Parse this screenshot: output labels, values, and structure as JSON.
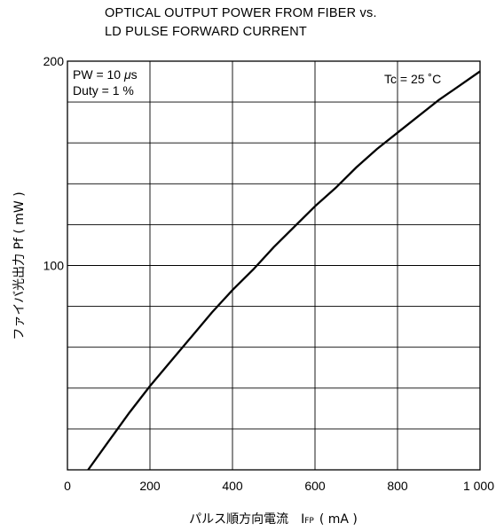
{
  "title_lines": [
    "OPTICAL OUTPUT POWER FROM FIBER vs.",
    "LD PULSE FORWARD CURRENT"
  ],
  "chart_data": {
    "type": "line",
    "title": "OPTICAL OUTPUT POWER FROM FIBER vs. LD PULSE FORWARD CURRENT",
    "xlabel": "パルス順方向電流　IFP ( mA )",
    "xlabel_main": "パルス順方向電流",
    "xlabel_sym": "I",
    "xlabel_sub": "FP",
    "xlabel_unit": "( mA )",
    "ylabel": "ファイバ光出力 Pf ( mW )",
    "xlim": [
      0,
      1000
    ],
    "ylim": [
      0,
      200
    ],
    "x_ticks": [
      0,
      200,
      400,
      600,
      800,
      1000
    ],
    "x_tick_labels": [
      "0",
      "200",
      "400",
      "600",
      "800",
      "1 000"
    ],
    "y_ticks": [
      100,
      200
    ],
    "y_tick_labels": [
      "100",
      "200"
    ],
    "x_grid": [
      200,
      400,
      600,
      800
    ],
    "y_grid": [
      20,
      40,
      60,
      80,
      100,
      120,
      140,
      160,
      180
    ],
    "grid": true,
    "annotations": [
      {
        "text": "PW = 10 μs",
        "position": "top-left"
      },
      {
        "text": "Duty = 1 %",
        "position": "top-left"
      },
      {
        "text": "Tc = 25 ˚C",
        "position": "top-right"
      }
    ],
    "series": [
      {
        "x": [
          50,
          100,
          150,
          200,
          250,
          300,
          350,
          400,
          450,
          500,
          550,
          600,
          650,
          700,
          750,
          800,
          850,
          900,
          950,
          1000
        ],
        "y": [
          0,
          14,
          28,
          41,
          53,
          65,
          77,
          88,
          98,
          109,
          119,
          129,
          138,
          148,
          157,
          165,
          173,
          181,
          188,
          195
        ]
      }
    ],
    "color": "#000000"
  }
}
